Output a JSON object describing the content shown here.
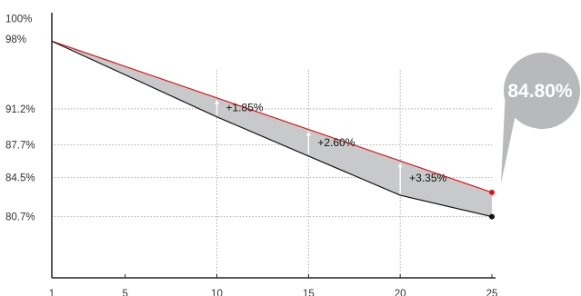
{
  "chart_data": {
    "type": "area",
    "x": [
      1,
      10,
      15,
      20,
      25
    ],
    "xticks": [
      "1",
      "5",
      "10",
      "15",
      "20",
      "25"
    ],
    "xlim": [
      1,
      25
    ],
    "ylim": [
      75,
      100
    ],
    "yticks": [
      100,
      98,
      91.2,
      87.7,
      84.5,
      80.7
    ],
    "ytick_labels": [
      "100%",
      "98%",
      "91.2%",
      "87.7%",
      "84.5%",
      "80.7%"
    ],
    "series": [
      {
        "values": [
          97.8,
          92.27,
          89.2,
          86.13,
          83.06
        ],
        "color": "#d9191c"
      },
      {
        "values": [
          97.8,
          90.42,
          86.6,
          82.78,
          80.7
        ],
        "color": "#111111"
      }
    ],
    "annotations": [
      {
        "x": 10,
        "label": "+1.85%"
      },
      {
        "x": 15,
        "label": "+2.60%"
      },
      {
        "x": 20,
        "label": "+3.35%"
      }
    ],
    "callout": {
      "label": "84.80%"
    },
    "gridlines_y": [
      91.2,
      87.7,
      84.5,
      80.7
    ],
    "gridlines_x": [
      10,
      15,
      20
    ],
    "fill_color": "#c8c9ca",
    "callout_color": "#b8b9bb"
  }
}
